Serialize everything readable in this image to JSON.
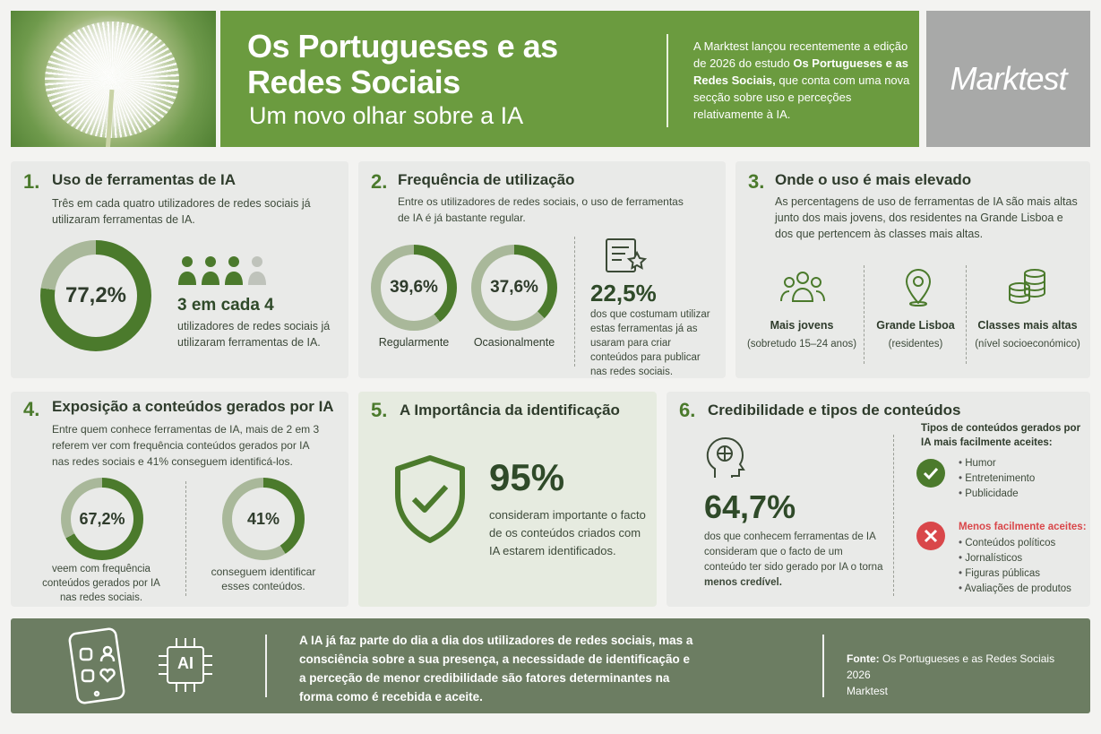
{
  "header": {
    "title": "Os Portugueses e as Redes Sociais",
    "subtitle": "Um novo olhar sobre a IA",
    "intro_pre": "A Marktest lançou recentemente a edição de 2026 do estudo",
    "intro_bold": "Os Portugueses e as Redes Sociais,",
    "intro_post": "que conta com uma nova secção sobre uso e perceções relativamente à IA.",
    "logo": "Marktest"
  },
  "s1": {
    "num": "1.",
    "title": "Uso de ferramentas de IA",
    "text": "Três em cada quatro utilizadores de redes sociais já utilizaram ferramentas de IA.",
    "ring_value": "77,2%",
    "ring_pct": 77.2,
    "big": "3 em cada 4",
    "caption": "utilizadores de redes sociais já utilizaram ferramentas de IA.",
    "icon_people": "people-icon"
  },
  "s2": {
    "num": "2.",
    "title": "Frequência de utilização",
    "text": "Entre os utilizadores de redes sociais, o uso de ferramentas de IA é já bastante regular.",
    "r1_value": "39,6%",
    "r1_pct": 39.6,
    "r1_label": "Regularmente",
    "r2_value": "37,6%",
    "r2_pct": 37.6,
    "r2_label": "Ocasionalmente",
    "big": "22,5%",
    "caption": "dos que costumam utilizar estas ferramentas já as usaram para criar conteúdos para publicar nas redes sociais."
  },
  "s3": {
    "num": "3.",
    "title": "Onde o uso é mais elevado",
    "text": "As percentagens de uso de ferramentas de IA são mais altas junto dos mais jovens, dos residentes na Grande Lisboa e dos que pertencem às classes mais altas.",
    "items": [
      {
        "title": "Mais jovens",
        "sub": "(sobretudo 15–24 anos)"
      },
      {
        "title": "Grande Lisboa",
        "sub": "(residentes)"
      },
      {
        "title": "Classes mais altas",
        "sub": "(nível socioeconómico)"
      }
    ]
  },
  "s4": {
    "num": "4.",
    "title": "Exposição a conteúdos gerados por IA",
    "text": "Entre quem conhece ferramentas de IA, mais de 2 em 3 referem ver com frequência conteúdos gerados por IA nas redes sociais e 41% conseguem identificá-los.",
    "r1_value": "67,2%",
    "r1_pct": 67.2,
    "r1_caption": "veem com frequência conteúdos gerados por IA nas redes sociais.",
    "r2_value": "41%",
    "r2_pct": 41,
    "r2_caption": "conseguem identificar esses conteúdos."
  },
  "s5": {
    "num": "5.",
    "title": "A Importância da identificação",
    "big": "95%",
    "caption": "consideram importante o facto de os conteúdos criados com IA estarem identificados."
  },
  "s6": {
    "num": "6.",
    "title": "Credibilidade e tipos de conteúdos",
    "big": "64,7%",
    "caption": "dos que conhecem ferramentas de IA consideram que o facto de um conteúdo ter sido gerado por IA o torna",
    "caption_bold": "menos credível.",
    "accepted_title": "Tipos de conteúdos gerados por IA mais facilmente aceites:",
    "accepted": [
      "Humor",
      "Entretenimento",
      "Publicidade"
    ],
    "rejected_title": "Menos facilmente aceites:",
    "rejected": [
      "Conteúdos políticos",
      "Jornalísticos",
      "Figuras públicas",
      "Avaliações de produtos"
    ]
  },
  "footer": {
    "chip": "AI",
    "text": "A IA já faz parte do dia a dia dos utilizadores de redes sociais, mas a consciência sobre a sua presença, a necessidade de identificação e a perceção de menor credibilidade são fatores determinantes na forma como é recebida e aceite.",
    "source_label": "Fonte:",
    "source": "Os Portugueses e as Redes Sociais 2026",
    "source2": "Marktest"
  },
  "colors": {
    "green_dark": "#4b7a2c",
    "green_light": "#a9b89a",
    "red": "#d9474a"
  }
}
